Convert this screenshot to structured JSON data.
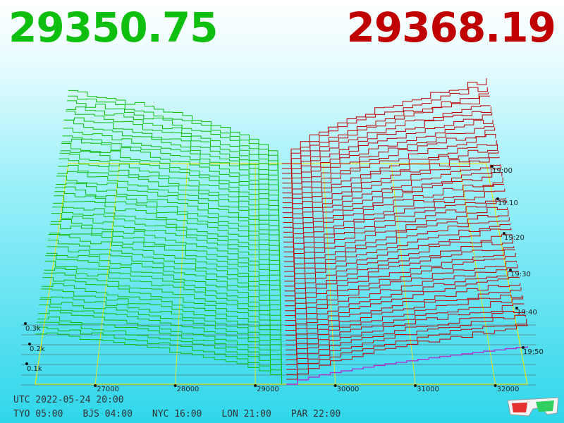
{
  "header": {
    "bid_price": "29350.75",
    "ask_price": "29368.19"
  },
  "footer": {
    "utc": "UTC 2022-05-24 20:00",
    "zones": [
      "TYO 05:00",
      "BJS 04:00",
      "NYC 16:00",
      "LON 21:00",
      "PAR 22:00"
    ]
  },
  "colors": {
    "bid": "#0fbf0f",
    "ask": "#c00000",
    "grid": "#e8e820",
    "volume_axis": "#333333",
    "depth_front": "#b030d0"
  },
  "icons": {
    "stereo": "3d-glasses-icon"
  },
  "chart_data": {
    "type": "area",
    "title": "",
    "x_axis": {
      "label": "",
      "ticks": [
        "27000",
        "28000",
        "29000",
        "30000",
        "31000",
        "32000"
      ],
      "range": [
        26250,
        32400
      ]
    },
    "volume_axis": {
      "ticks": [
        "0.1k",
        "0.2k",
        "0.3k"
      ],
      "range": [
        0,
        320
      ]
    },
    "time_axis": {
      "ticks": [
        "19:00",
        "19:10",
        "19:20",
        "19:30",
        "19:40",
        "19:50"
      ]
    },
    "mid_price": 29360,
    "series": [
      {
        "name": "",
        "side": "bid",
        "price_range": [
          26250,
          29350
        ],
        "depth_at_far_edge": 300
      },
      {
        "name": "",
        "side": "ask",
        "price_range": [
          29368,
          32400
        ],
        "depth_at_far_edge": 340
      }
    ]
  }
}
